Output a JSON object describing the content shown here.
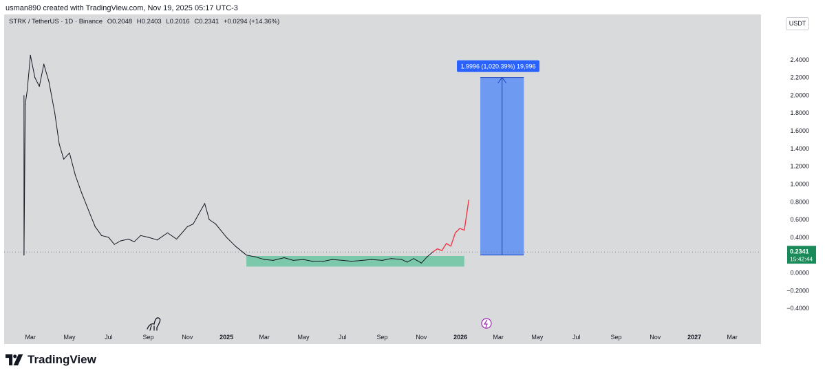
{
  "header": {
    "created_text": "usman890 created with TradingView.com, Nov 19, 2025 05:17 UTC-3"
  },
  "legend": {
    "symbol": "STRK / TetherUS · 1D · Binance",
    "open": "O0.2048",
    "high": "H0.2403",
    "low": "L0.2016",
    "close": "C0.2341",
    "change": "+0.0294 (+14.36%)"
  },
  "currency": "USDT",
  "brand": "TradingView",
  "colors": {
    "background": "#d9dadc",
    "price_line": "#131722",
    "projection": "#f23645",
    "zone": "#5cc29a",
    "target_box": "#5b8ff5",
    "target_label": "#2962ff",
    "last_price": "#1b8a5a"
  },
  "chart_data": {
    "type": "line",
    "series": [
      {
        "name": "",
        "x": [
          "2024-02-20",
          "2024-02-22",
          "2024-02-25",
          "2024-03-01",
          "2024-03-08",
          "2024-03-15",
          "2024-03-22",
          "2024-03-30",
          "2024-04-08",
          "2024-04-15",
          "2024-04-22",
          "2024-05-01",
          "2024-05-10",
          "2024-05-20",
          "2024-06-01",
          "2024-06-10",
          "2024-06-20",
          "2024-07-01",
          "2024-07-10",
          "2024-07-20",
          "2024-08-01",
          "2024-08-10",
          "2024-08-20",
          "2024-09-01",
          "2024-09-15",
          "2024-10-01",
          "2024-10-15",
          "2024-11-01",
          "2024-11-10",
          "2024-11-20",
          "2024-11-28",
          "2024-12-05",
          "2024-12-15",
          "2025-01-01",
          "2025-01-15",
          "2025-02-01",
          "2025-02-15",
          "2025-03-01",
          "2025-03-15",
          "2025-04-01",
          "2025-04-15",
          "2025-05-01",
          "2025-05-15",
          "2025-06-01",
          "2025-06-15",
          "2025-07-01",
          "2025-07-15",
          "2025-08-01",
          "2025-08-15",
          "2025-09-01",
          "2025-09-15",
          "2025-10-01",
          "2025-10-10",
          "2025-10-20",
          "2025-11-01",
          "2025-11-10",
          "2025-11-19"
        ],
        "y": [
          0.2,
          1.9,
          2.05,
          2.45,
          2.2,
          2.1,
          2.35,
          2.15,
          1.8,
          1.45,
          1.28,
          1.35,
          1.1,
          0.9,
          0.68,
          0.52,
          0.42,
          0.4,
          0.32,
          0.36,
          0.38,
          0.35,
          0.42,
          0.4,
          0.37,
          0.45,
          0.38,
          0.52,
          0.55,
          0.68,
          0.78,
          0.6,
          0.55,
          0.4,
          0.3,
          0.2,
          0.18,
          0.15,
          0.14,
          0.17,
          0.14,
          0.15,
          0.13,
          0.13,
          0.15,
          0.14,
          0.13,
          0.14,
          0.15,
          0.14,
          0.16,
          0.15,
          0.12,
          0.16,
          0.11,
          0.18,
          0.2341
        ]
      },
      {
        "name": "",
        "x": [
          "2025-11-19",
          "2025-11-26",
          "2025-12-03",
          "2025-12-10",
          "2025-12-17",
          "2025-12-24",
          "2025-12-31",
          "2026-01-07",
          "2026-01-14"
        ],
        "y": [
          0.2341,
          0.27,
          0.25,
          0.33,
          0.3,
          0.45,
          0.5,
          0.48,
          0.82
        ]
      }
    ],
    "annotations": {
      "accumulation_zone": {
        "x_start": "2025-02-01",
        "x_end": "2026-01-07",
        "y_low": 0.07,
        "y_high": 0.19
      },
      "target_box": {
        "x_start": "2026-02-01",
        "x_end": "2026-04-10",
        "y_low": 0.2,
        "y_high": 2.2,
        "label": "1.9996 (1,020.39%) 19,996"
      }
    },
    "last_price": {
      "value": 0.2341,
      "label": "0.2341",
      "countdown": "15:42:44"
    },
    "x_ticks": [
      "Mar",
      "May",
      "Jul",
      "Sep",
      "Nov",
      "2025",
      "Mar",
      "May",
      "Jul",
      "Sep",
      "Nov",
      "2026",
      "Mar",
      "May",
      "Jul",
      "Sep",
      "Nov",
      "2027",
      "Mar"
    ],
    "y_ticks": [
      "2.4000",
      "2.2000",
      "2.0000",
      "1.8000",
      "1.6000",
      "1.4000",
      "1.2000",
      "1.0000",
      "0.8000",
      "0.6000",
      "0.4000",
      "0.2000",
      "0.0000",
      "−0.2000",
      "−0.4000"
    ],
    "y_tick_values": [
      2.4,
      2.2,
      2.0,
      1.8,
      1.6,
      1.4,
      1.2,
      1.0,
      0.8,
      0.6,
      0.4,
      0.2,
      0.0,
      -0.2,
      -0.4
    ],
    "ylim": [
      -0.5,
      2.6
    ]
  }
}
